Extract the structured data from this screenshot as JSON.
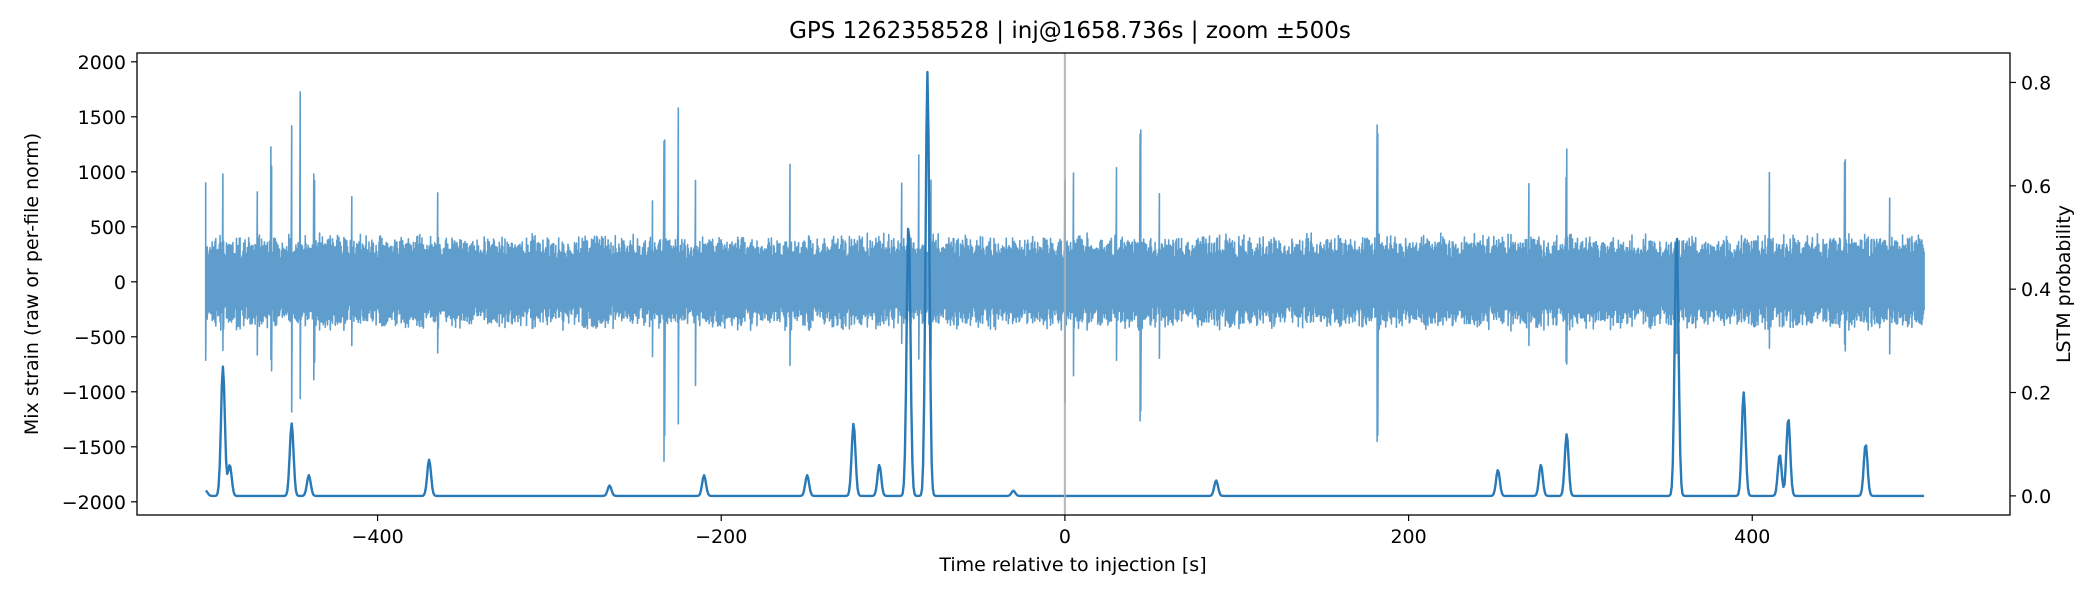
{
  "chart_data": {
    "type": "line",
    "title": "GPS 1262358528 | inj@1658.736s | zoom ±500s",
    "xlabel": "Time relative to injection [s]",
    "ylabel": "Mix strain (raw or per-file norm)",
    "y2label": "LSTM probability",
    "xlim": [
      -540,
      550
    ],
    "ylim": [
      -2120,
      2080
    ],
    "y2lim": [
      -0.037,
      0.857
    ],
    "x_ticks": [
      -400,
      -200,
      0,
      200,
      400
    ],
    "x_tick_labels": [
      "−400",
      "−200",
      "0",
      "200",
      "400"
    ],
    "y_ticks": [
      -2000,
      -1500,
      -1000,
      -500,
      0,
      500,
      1000,
      1500,
      2000
    ],
    "y_tick_labels": [
      "−2000",
      "−1500",
      "−1000",
      "−500",
      "0",
      "500",
      "1000",
      "1500",
      "2000"
    ],
    "y2_ticks": [
      0.0,
      0.2,
      0.4,
      0.6,
      0.8
    ],
    "y2_tick_labels": [
      "0.0",
      "0.2",
      "0.4",
      "0.6",
      "0.8"
    ],
    "vline_x": 0,
    "grid": false,
    "colors": {
      "strain": "#5f9ecc",
      "probability": "#2a7ab8",
      "vline": "#b0b0b0"
    },
    "series": [
      {
        "axis": "left",
        "x_range": [
          -500,
          500
        ],
        "typical_envelope": 450,
        "spikes": [
          {
            "x": -500,
            "max": 1000,
            "min": -870
          },
          {
            "x": -490,
            "max": 1000,
            "min": -800
          },
          {
            "x": -470,
            "max": 1000,
            "min": -700
          },
          {
            "x": -462,
            "max": 1280,
            "min": -900
          },
          {
            "x": -450,
            "max": 1880,
            "min": -1300
          },
          {
            "x": -445,
            "max": 1850,
            "min": -1250
          },
          {
            "x": -437,
            "max": 1100,
            "min": -950
          },
          {
            "x": -415,
            "max": 1000,
            "min": -700
          },
          {
            "x": -365,
            "max": 1000,
            "min": -750
          },
          {
            "x": -240,
            "max": 950,
            "min": -900
          },
          {
            "x": -233,
            "max": 1450,
            "min": -1650
          },
          {
            "x": -225,
            "max": 1800,
            "min": -1550
          },
          {
            "x": -215,
            "max": 1100,
            "min": -1000
          },
          {
            "x": -160,
            "max": 1350,
            "min": -900
          },
          {
            "x": -95,
            "max": 950,
            "min": -650
          },
          {
            "x": -85,
            "max": 1180,
            "min": -750
          },
          {
            "x": -78,
            "max": 980,
            "min": -700
          },
          {
            "x": 0,
            "max": 1080,
            "min": -1120
          },
          {
            "x": 5,
            "max": 1000,
            "min": -900
          },
          {
            "x": 30,
            "max": 1250,
            "min": -950
          },
          {
            "x": 44,
            "max": 1400,
            "min": -1400
          },
          {
            "x": 55,
            "max": 1000,
            "min": -750
          },
          {
            "x": 182,
            "max": 1470,
            "min": -1470
          },
          {
            "x": 270,
            "max": 1150,
            "min": -750
          },
          {
            "x": 292,
            "max": 1250,
            "min": -800
          },
          {
            "x": 356,
            "max": 400,
            "min": -800
          },
          {
            "x": 410,
            "max": 1150,
            "min": -750
          },
          {
            "x": 454,
            "max": 1250,
            "min": -700
          },
          {
            "x": 480,
            "max": 800,
            "min": -700
          }
        ]
      },
      {
        "axis": "right",
        "x_range": [
          -500,
          500
        ],
        "baseline": 0.0,
        "peaks": [
          {
            "x": -500,
            "y": 0.01
          },
          {
            "x": -490,
            "y": 0.25
          },
          {
            "x": -486,
            "y": 0.06
          },
          {
            "x": -450,
            "y": 0.14
          },
          {
            "x": -440,
            "y": 0.04
          },
          {
            "x": -370,
            "y": 0.07
          },
          {
            "x": -265,
            "y": 0.02
          },
          {
            "x": -210,
            "y": 0.04
          },
          {
            "x": -150,
            "y": 0.04
          },
          {
            "x": -123,
            "y": 0.14
          },
          {
            "x": -108,
            "y": 0.06
          },
          {
            "x": -91,
            "y": 0.53
          },
          {
            "x": -80,
            "y": 0.82
          },
          {
            "x": -30,
            "y": 0.01
          },
          {
            "x": 88,
            "y": 0.03
          },
          {
            "x": 252,
            "y": 0.05
          },
          {
            "x": 277,
            "y": 0.06
          },
          {
            "x": 292,
            "y": 0.12
          },
          {
            "x": 356,
            "y": 0.51
          },
          {
            "x": 395,
            "y": 0.2
          },
          {
            "x": 416,
            "y": 0.08
          },
          {
            "x": 421,
            "y": 0.15
          },
          {
            "x": 466,
            "y": 0.1
          }
        ]
      }
    ]
  }
}
